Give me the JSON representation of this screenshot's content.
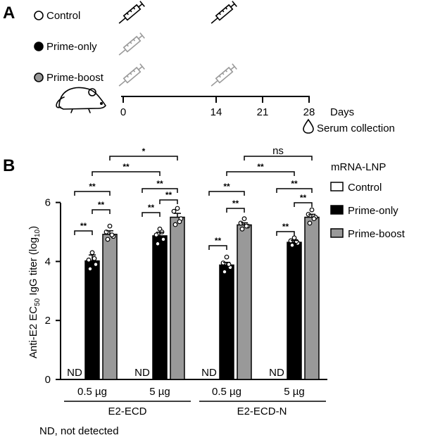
{
  "panel_a": {
    "letter": "A",
    "groups": [
      {
        "label": "Control",
        "marker": "open",
        "syringe_color": "#000000",
        "shots": [
          0,
          14
        ]
      },
      {
        "label": "Prime-only",
        "marker": "filled",
        "syringe_color": "#9a9a9a",
        "shots": [
          0
        ]
      },
      {
        "label": "Prime-boost",
        "marker": "gray",
        "syringe_color": "#9a9a9a",
        "shots": [
          0,
          14
        ]
      }
    ],
    "timeline": {
      "days": [
        "0",
        "14",
        "21",
        "28"
      ],
      "unit": "Days",
      "collection_label": "Serum collection",
      "collection_day": "28"
    }
  },
  "panel_b": {
    "letter": "B",
    "legend_title": "mRNA-LNP",
    "nd_note": "ND, not detected",
    "nd_label": "ND",
    "ylabel_parts": {
      "pre": "Anti-E2 EC",
      "sub": "50",
      "mid": " IgG titer (log",
      "sub2": "10",
      "post": ")"
    }
  },
  "chart_data": {
    "type": "bar",
    "ylim": [
      0,
      6
    ],
    "yticks": [
      "0",
      "2",
      "4",
      "6"
    ],
    "series": [
      {
        "name": "Control",
        "color": "#ffffff",
        "values": [
          null,
          null,
          null,
          null
        ]
      },
      {
        "name": "Prime-only",
        "color": "#000000",
        "values": [
          4.02,
          4.87,
          3.88,
          4.65
        ]
      },
      {
        "name": "Prime-boost",
        "color": "#999999",
        "values": [
          4.92,
          5.5,
          5.24,
          5.5
        ]
      }
    ],
    "errors": {
      "Prime-only": [
        0.2,
        0.12,
        0.09,
        0.06
      ],
      "Prime-boost": [
        0.12,
        0.13,
        0.07,
        0.1
      ]
    },
    "points": {
      "Prime-only": [
        [
          4.3,
          4.05,
          3.9,
          3.75,
          4.1
        ],
        [
          5.1,
          4.9,
          4.75,
          4.6,
          5.0
        ],
        [
          4.15,
          3.95,
          3.8,
          3.65,
          3.9
        ],
        [
          4.8,
          4.7,
          4.62,
          4.55,
          4.68
        ]
      ],
      "Prime-boost": [
        [
          5.2,
          5.0,
          4.85,
          4.75,
          4.9
        ],
        [
          5.8,
          5.7,
          5.45,
          5.25,
          5.35
        ],
        [
          5.45,
          5.3,
          5.2,
          5.1,
          5.2
        ],
        [
          5.75,
          5.6,
          5.5,
          5.3,
          5.45
        ]
      ]
    },
    "doses": [
      "0.5 µg",
      "5 µg",
      "0.5 µg",
      "5 µg"
    ],
    "antigens": [
      "E2-ECD",
      "E2-ECD-N"
    ],
    "significance": [
      "**",
      "**",
      "**",
      "**",
      "**",
      "**",
      "**",
      "*",
      "**",
      "**",
      "**",
      "**",
      "**",
      "**",
      "**",
      "ns"
    ]
  }
}
